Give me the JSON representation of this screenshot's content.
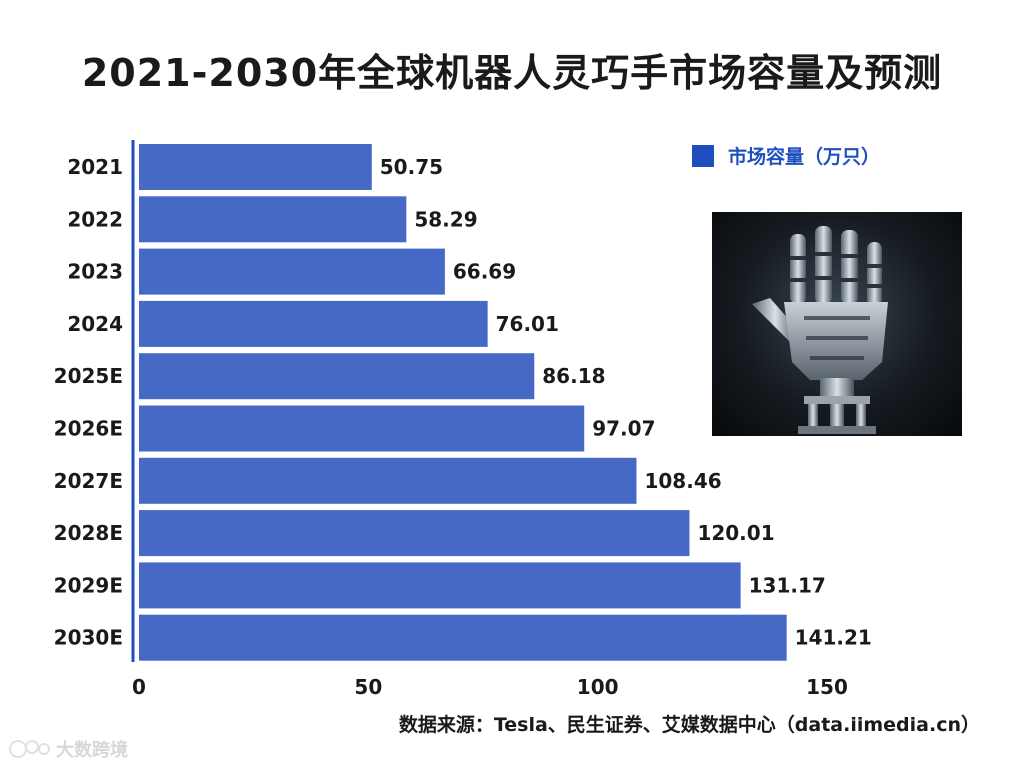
{
  "chart_data": {
    "type": "bar",
    "orientation": "horizontal",
    "title": "2021-2030年全球机器人灵巧手市场容量及预测",
    "categories": [
      "2021",
      "2022",
      "2023",
      "2024",
      "2025E",
      "2026E",
      "2027E",
      "2028E",
      "2029E",
      "2030E"
    ],
    "series": [
      {
        "name": "市场容量（万只）",
        "values": [
          50.75,
          58.29,
          66.69,
          76.01,
          86.18,
          97.07,
          108.46,
          120.01,
          131.17,
          141.21
        ]
      }
    ],
    "value_labels": [
      "50.75",
      "58.29",
      "66.69",
      "76.01",
      "86.18",
      "97.07",
      "108.46",
      "120.01",
      "131.17",
      "141.21"
    ],
    "xlim": [
      0,
      150
    ],
    "x_ticks": [
      "0",
      "50",
      "100",
      "150"
    ],
    "grid": false,
    "legend": "top-right",
    "bar_color": "#4569c4",
    "axis_color": "#1f4fbf"
  },
  "legend": {
    "label": "市场容量（万只）",
    "color": "#1f4fbf"
  },
  "image": {
    "subject": "robotic-hand-icon"
  },
  "source": "数据来源：Tesla、民生证券、艾媒数据中心（data.iimedia.cn）",
  "watermark": "大数跨境"
}
